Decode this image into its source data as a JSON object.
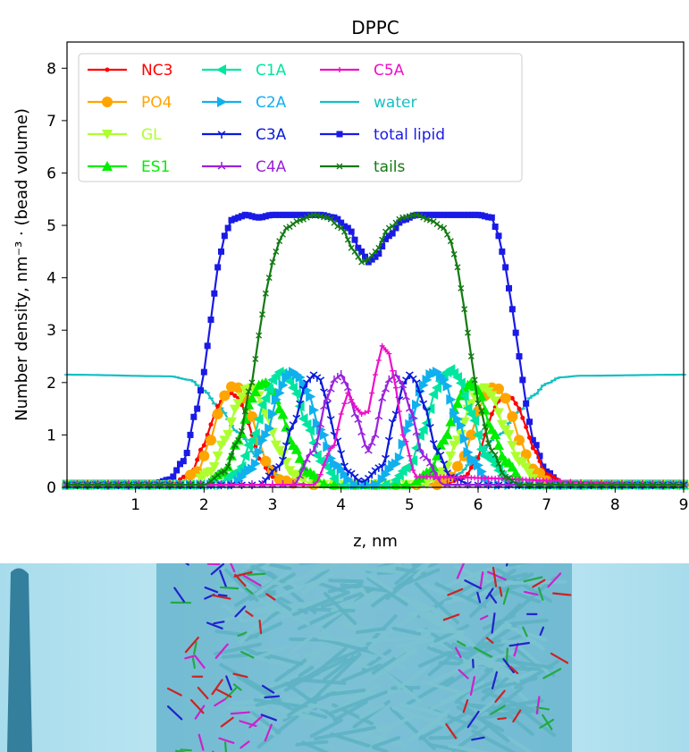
{
  "chart_data": {
    "type": "line",
    "title": "DPPC",
    "xlabel": "z, nm",
    "ylabel": "Number density, nm⁻³ · (bead volume)",
    "xlim": [
      0,
      9
    ],
    "ylim": [
      0,
      8.5
    ],
    "xticks": [
      "1",
      "2",
      "3",
      "4",
      "5",
      "6",
      "7",
      "8",
      "9"
    ],
    "yticks": [
      "0",
      "1",
      "2",
      "3",
      "4",
      "5",
      "6",
      "7",
      "8"
    ],
    "grid": false,
    "legend_position": "top-left",
    "series": [
      {
        "name": "NC3",
        "color": "#ff0000",
        "marker": "circle-small",
        "x": [
          0.0,
          1.5,
          1.8,
          2.0,
          2.1,
          2.2,
          2.3,
          2.4,
          2.5,
          2.6,
          2.7,
          2.8,
          3.0,
          3.3,
          5.5,
          5.8,
          6.0,
          6.1,
          6.2,
          6.3,
          6.4,
          6.5,
          6.6,
          6.7,
          6.8,
          7.0,
          7.3,
          9.0
        ],
        "y": [
          0.05,
          0.05,
          0.25,
          0.8,
          1.2,
          1.55,
          1.72,
          1.8,
          1.7,
          1.45,
          1.0,
          0.55,
          0.2,
          0.05,
          0.05,
          0.2,
          0.55,
          1.0,
          1.4,
          1.65,
          1.75,
          1.7,
          1.5,
          1.15,
          0.75,
          0.25,
          0.05,
          0.05
        ]
      },
      {
        "name": "PO4",
        "color": "#ffa500",
        "marker": "circle",
        "x": [
          0.0,
          1.6,
          1.9,
          2.1,
          2.2,
          2.3,
          2.4,
          2.5,
          2.6,
          2.7,
          2.8,
          2.9,
          3.1,
          3.4,
          5.4,
          5.6,
          5.8,
          5.9,
          6.0,
          6.1,
          6.2,
          6.3,
          6.4,
          6.5,
          6.6,
          6.8,
          7.1,
          9.0
        ],
        "y": [
          0.05,
          0.05,
          0.3,
          0.9,
          1.4,
          1.75,
          1.92,
          1.9,
          1.7,
          1.35,
          0.9,
          0.5,
          0.15,
          0.05,
          0.05,
          0.2,
          0.6,
          1.0,
          1.45,
          1.75,
          1.9,
          1.88,
          1.7,
          1.35,
          0.9,
          0.35,
          0.05,
          0.05
        ]
      },
      {
        "name": "GL",
        "color": "#adff2f",
        "marker": "triangle-down",
        "x": [
          0.0,
          1.8,
          2.1,
          2.3,
          2.5,
          2.6,
          2.7,
          2.8,
          2.9,
          3.1,
          3.3,
          3.6,
          5.2,
          5.5,
          5.7,
          5.9,
          6.0,
          6.1,
          6.2,
          6.4,
          6.6,
          6.9,
          9.0
        ],
        "y": [
          0.05,
          0.05,
          0.3,
          0.9,
          1.6,
          1.85,
          1.9,
          1.75,
          1.4,
          0.7,
          0.25,
          0.05,
          0.05,
          0.3,
          0.9,
          1.6,
          1.85,
          1.9,
          1.75,
          1.1,
          0.5,
          0.05,
          0.05
        ]
      },
      {
        "name": "ES1",
        "color": "#00ee00",
        "marker": "triangle-up",
        "x": [
          0.0,
          2.0,
          2.3,
          2.5,
          2.7,
          2.8,
          2.9,
          3.0,
          3.1,
          3.3,
          3.5,
          3.8,
          5.0,
          5.3,
          5.5,
          5.7,
          5.8,
          5.9,
          6.0,
          6.2,
          6.4,
          6.7,
          9.0
        ],
        "y": [
          0.05,
          0.05,
          0.3,
          0.9,
          1.7,
          1.95,
          2.0,
          1.85,
          1.5,
          0.8,
          0.3,
          0.05,
          0.05,
          0.3,
          0.9,
          1.6,
          1.9,
          2.0,
          1.85,
          1.1,
          0.5,
          0.05,
          0.05
        ]
      },
      {
        "name": "C1A",
        "color": "#00e5a0",
        "marker": "triangle-left",
        "x": [
          0.0,
          2.2,
          2.5,
          2.7,
          2.9,
          3.0,
          3.1,
          3.2,
          3.3,
          3.5,
          3.7,
          4.0,
          4.7,
          5.0,
          5.2,
          5.4,
          5.5,
          5.6,
          5.7,
          5.9,
          6.1,
          6.5,
          9.0
        ],
        "y": [
          0.05,
          0.05,
          0.3,
          0.9,
          1.7,
          2.05,
          2.2,
          2.15,
          1.9,
          1.2,
          0.5,
          0.05,
          0.05,
          0.4,
          1.1,
          1.9,
          2.15,
          2.25,
          2.1,
          1.4,
          0.6,
          0.05,
          0.05
        ]
      },
      {
        "name": "C2A",
        "color": "#10b0ee",
        "marker": "triangle-right",
        "x": [
          0.0,
          2.4,
          2.7,
          2.9,
          3.1,
          3.2,
          3.3,
          3.4,
          3.5,
          3.7,
          3.9,
          4.2,
          4.5,
          4.8,
          5.0,
          5.2,
          5.3,
          5.4,
          5.5,
          5.7,
          5.9,
          6.2,
          9.0
        ],
        "y": [
          0.05,
          0.05,
          0.35,
          1.0,
          1.8,
          2.1,
          2.2,
          2.1,
          1.85,
          1.1,
          0.45,
          0.05,
          0.05,
          0.45,
          1.2,
          1.95,
          2.15,
          2.2,
          2.05,
          1.3,
          0.55,
          0.05,
          0.05
        ]
      },
      {
        "name": "C3A",
        "color": "#0a1ad8",
        "marker": "tri-down",
        "x": [
          0.0,
          2.8,
          3.1,
          3.3,
          3.5,
          3.6,
          3.7,
          3.8,
          3.9,
          4.1,
          4.3,
          4.6,
          4.8,
          4.9,
          5.0,
          5.1,
          5.2,
          5.4,
          5.6,
          5.9,
          9.0
        ],
        "y": [
          0.05,
          0.05,
          0.4,
          1.2,
          2.0,
          2.15,
          2.05,
          1.6,
          1.0,
          0.3,
          0.1,
          0.4,
          1.4,
          1.95,
          2.15,
          2.0,
          1.6,
          0.7,
          0.2,
          0.05,
          0.05
        ]
      },
      {
        "name": "C4A",
        "color": "#9a22dd",
        "marker": "tri-up",
        "x": [
          0.0,
          3.3,
          3.6,
          3.8,
          3.9,
          4.0,
          4.1,
          4.2,
          4.4,
          4.5,
          4.6,
          4.7,
          4.8,
          4.9,
          5.0,
          5.2,
          5.5,
          9.0
        ],
        "y": [
          0.05,
          0.05,
          0.7,
          1.7,
          2.05,
          2.15,
          1.9,
          1.4,
          0.7,
          1.0,
          1.7,
          2.05,
          2.15,
          1.95,
          1.5,
          0.6,
          0.05,
          0.05
        ]
      },
      {
        "name": "C5A",
        "color": "#ee10c8",
        "marker": "plus",
        "x": [
          0.0,
          3.6,
          3.9,
          4.0,
          4.1,
          4.2,
          4.3,
          4.4,
          4.5,
          4.6,
          4.7,
          4.8,
          4.9,
          5.1,
          9.0
        ],
        "y": [
          0.05,
          0.05,
          0.8,
          1.4,
          1.8,
          1.55,
          1.4,
          1.45,
          2.15,
          2.7,
          2.55,
          1.9,
          1.0,
          0.2,
          0.05
        ]
      },
      {
        "name": "water",
        "color": "#17bfc2",
        "marker": "dash",
        "x": [
          0.0,
          1.5,
          1.8,
          2.0,
          2.2,
          2.5,
          2.8,
          3.1,
          3.3,
          3.6,
          5.2,
          5.4,
          5.7,
          6.0,
          6.3,
          6.6,
          6.8,
          7.0,
          7.2,
          7.5,
          9.0
        ],
        "y": [
          2.15,
          2.12,
          2.05,
          1.85,
          1.55,
          1.05,
          0.55,
          0.22,
          0.08,
          0.03,
          0.03,
          0.08,
          0.25,
          0.6,
          1.0,
          1.45,
          1.75,
          1.98,
          2.1,
          2.13,
          2.15
        ]
      },
      {
        "name": "total lipid",
        "color": "#1a1ae6",
        "marker": "square",
        "x": [
          0.0,
          1.3,
          1.5,
          1.7,
          1.9,
          2.0,
          2.1,
          2.2,
          2.3,
          2.4,
          2.5,
          2.6,
          2.8,
          3.0,
          3.5,
          3.7,
          3.9,
          4.1,
          4.3,
          4.4,
          4.5,
          4.7,
          4.9,
          5.1,
          5.3,
          6.0,
          6.2,
          6.3,
          6.4,
          6.5,
          6.6,
          6.7,
          6.8,
          7.0,
          7.2,
          9.0
        ],
        "y": [
          0.08,
          0.08,
          0.15,
          0.5,
          1.5,
          2.2,
          3.2,
          4.2,
          4.8,
          5.1,
          5.15,
          5.2,
          5.15,
          5.2,
          5.2,
          5.2,
          5.15,
          4.95,
          4.5,
          4.3,
          4.4,
          4.8,
          5.1,
          5.2,
          5.2,
          5.2,
          5.15,
          4.8,
          4.2,
          3.4,
          2.5,
          1.6,
          0.9,
          0.3,
          0.08,
          0.08
        ]
      },
      {
        "name": "tails",
        "color": "#137a13",
        "marker": "x",
        "x": [
          0.0,
          2.0,
          2.3,
          2.5,
          2.7,
          2.8,
          2.9,
          3.0,
          3.1,
          3.2,
          3.4,
          3.6,
          3.8,
          4.0,
          4.2,
          4.3,
          4.4,
          4.5,
          4.7,
          4.9,
          5.1,
          5.3,
          5.5,
          5.6,
          5.7,
          5.8,
          5.9,
          6.0,
          6.2,
          6.4,
          6.6,
          9.0
        ],
        "y": [
          0.05,
          0.05,
          0.3,
          0.9,
          2.0,
          2.9,
          3.7,
          4.3,
          4.7,
          4.95,
          5.1,
          5.2,
          5.15,
          4.95,
          4.5,
          4.3,
          4.35,
          4.5,
          4.95,
          5.15,
          5.2,
          5.1,
          4.95,
          4.7,
          4.2,
          3.4,
          2.5,
          1.6,
          0.7,
          0.2,
          0.05,
          0.05
        ]
      }
    ]
  },
  "snapshot": {
    "colors": {
      "water": "#bfe6f2",
      "membrane": "#2f8fb0",
      "tails": "#5fb3c4",
      "headgroup_n": "#2222cc",
      "headgroup_p": "#cc22cc",
      "glycerol": "#22aa44",
      "ester_o": "#cc2222"
    }
  }
}
